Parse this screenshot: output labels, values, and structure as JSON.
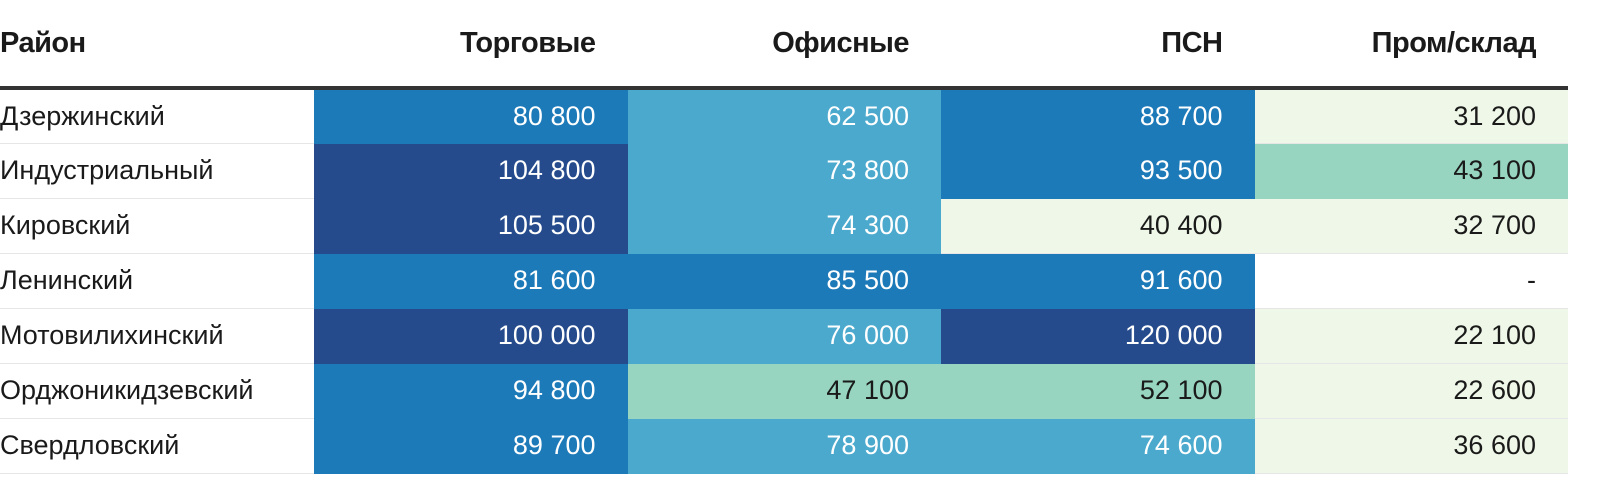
{
  "chart_data": {
    "type": "table",
    "columns": [
      "Район",
      "Торговые",
      "Офисные",
      "ПСН",
      "Пром/склад"
    ],
    "rows": [
      {
        "district": "Дзержинский",
        "values": [
          "80 800",
          "62 500",
          "88 700",
          "31 200"
        ]
      },
      {
        "district": "Индустриальный",
        "values": [
          "104 800",
          "73 800",
          "93 500",
          "43 100"
        ]
      },
      {
        "district": "Кировский",
        "values": [
          "105 500",
          "74 300",
          "40 400",
          "32 700"
        ]
      },
      {
        "district": "Ленинский",
        "values": [
          "81 600",
          "85 500",
          "91 600",
          "-"
        ]
      },
      {
        "district": "Мотовилихинский",
        "values": [
          "100 000",
          "76 000",
          "120 000",
          "22 100"
        ]
      },
      {
        "district": "Орджоникидзевский",
        "values": [
          "94 800",
          "47 100",
          "52 100",
          "22 600"
        ]
      },
      {
        "district": "Свердловский",
        "values": [
          "89 700",
          "78 900",
          "74 600",
          "36 600"
        ]
      }
    ],
    "color_scale": {
      "stops": [
        {
          "min": 100000,
          "color": "#254b8c",
          "text": "#ffffff"
        },
        {
          "min": 80000,
          "color": "#1d7ab8",
          "text": "#ffffff"
        },
        {
          "min": 56000,
          "color": "#4aa9cd",
          "text": "#ffffff"
        },
        {
          "min": 42000,
          "color": "#97d5c1",
          "text": "#1a1a1a"
        },
        {
          "min": 0,
          "color": "#eff8e8",
          "text": "#1a1a1a"
        }
      ],
      "missing_color": "#ffffff",
      "missing_text": "#1a1a1a"
    }
  }
}
